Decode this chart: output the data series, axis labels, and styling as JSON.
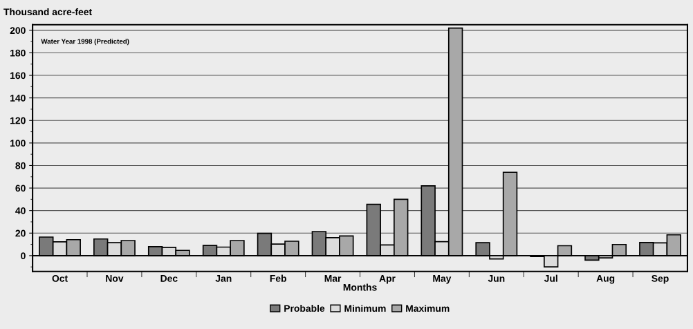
{
  "chart_data": {
    "type": "bar",
    "ylabel": "Thousand acre-feet",
    "xlabel": "Months",
    "annotations": [
      "Water Year 1998 (Predicted)"
    ],
    "categories": [
      "Oct",
      "Nov",
      "Dec",
      "Jan",
      "Feb",
      "Mar",
      "Apr",
      "May",
      "Jun",
      "Jul",
      "Aug",
      "Sep"
    ],
    "series": [
      {
        "name": "Probable",
        "color": "#7a7a7a",
        "values": [
          16.5,
          14.8,
          8,
          9,
          19.8,
          21.4,
          45.5,
          62,
          11.5,
          -0.8,
          -4,
          11.7
        ]
      },
      {
        "name": "Minimum",
        "color": "#dcdcdc",
        "values": [
          12.3,
          11.5,
          7.4,
          7.6,
          10.3,
          16,
          9.5,
          12.4,
          -2.9,
          -10,
          -2,
          11.3
        ]
      },
      {
        "name": "Maximum",
        "color": "#a8a8a8",
        "values": [
          14.2,
          13.4,
          4.7,
          13.4,
          12.8,
          17.5,
          50,
          202,
          74,
          8.8,
          9.9,
          18.5
        ]
      }
    ],
    "ylim": [
      -14,
      205
    ],
    "yticks": [
      0,
      20,
      40,
      60,
      80,
      100,
      120,
      140,
      160,
      180,
      200
    ],
    "grid": "y",
    "legend": "bottom"
  }
}
